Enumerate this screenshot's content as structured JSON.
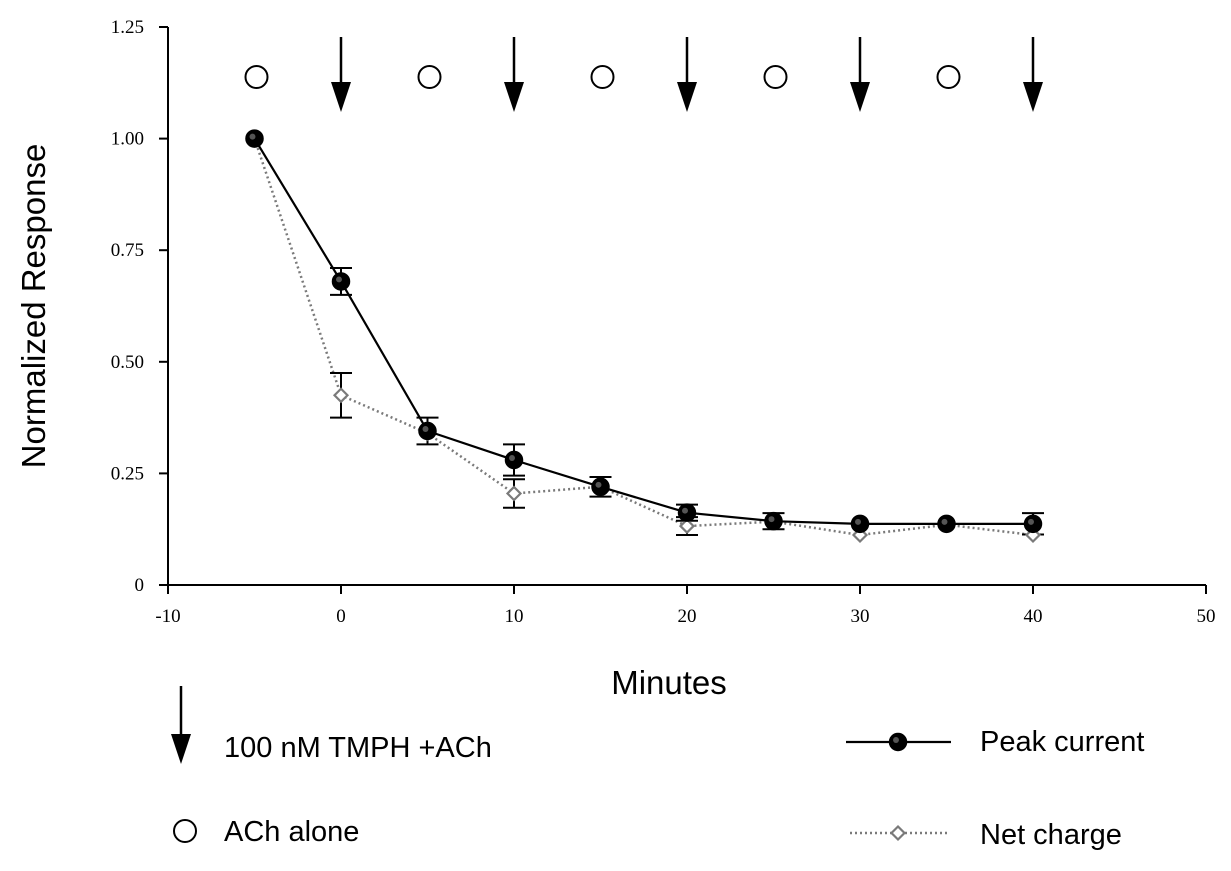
{
  "chart_data": {
    "type": "line",
    "xlabel": "Minutes",
    "ylabel": "Normalized Response",
    "xlim": [
      -10,
      50
    ],
    "ylim": [
      0,
      1.25
    ],
    "x_ticks": [
      -10,
      0,
      10,
      20,
      30,
      40,
      50
    ],
    "y_ticks": [
      0,
      0.25,
      0.5,
      0.75,
      1.0,
      1.25
    ],
    "y_tick_labels": [
      "0",
      "0.25",
      "0.50",
      "0.75",
      "1.00",
      "1.25"
    ],
    "grid": false,
    "series": [
      {
        "name": "Peak current",
        "marker": "filled-circle",
        "line": "solid",
        "color": "#000000",
        "x": [
          -5,
          0,
          5,
          10,
          15,
          20,
          25,
          30,
          35,
          40
        ],
        "y": [
          1.0,
          0.68,
          0.345,
          0.28,
          0.22,
          0.162,
          0.143,
          0.137,
          0.137,
          0.137
        ],
        "err": [
          0.0,
          0.03,
          0.03,
          0.035,
          0.022,
          0.018,
          0.018,
          0.0,
          0.0,
          0.024
        ]
      },
      {
        "name": "Net charge",
        "marker": "open-diamond",
        "line": "dotted",
        "color": "#7a7a7a",
        "x": [
          -5,
          0,
          5,
          10,
          15,
          20,
          25,
          30,
          35,
          40
        ],
        "y": [
          1.0,
          0.425,
          0.34,
          0.205,
          0.22,
          0.132,
          0.142,
          0.112,
          0.135,
          0.112
        ],
        "err": [
          0.0,
          0.05,
          0.0,
          0.032,
          0.0,
          0.02,
          0.0,
          0.0,
          0.0,
          0.0
        ]
      }
    ],
    "annotations": {
      "ach_alone_times": [
        -5,
        5,
        15,
        25,
        35
      ],
      "tmph_ach_times": [
        0,
        10,
        20,
        30,
        40
      ]
    },
    "symbol_legend": [
      {
        "symbol": "down-arrow-icon",
        "label": "100 nM TMPH +ACh"
      },
      {
        "symbol": "open-circle-icon",
        "label": "ACh alone"
      }
    ]
  }
}
